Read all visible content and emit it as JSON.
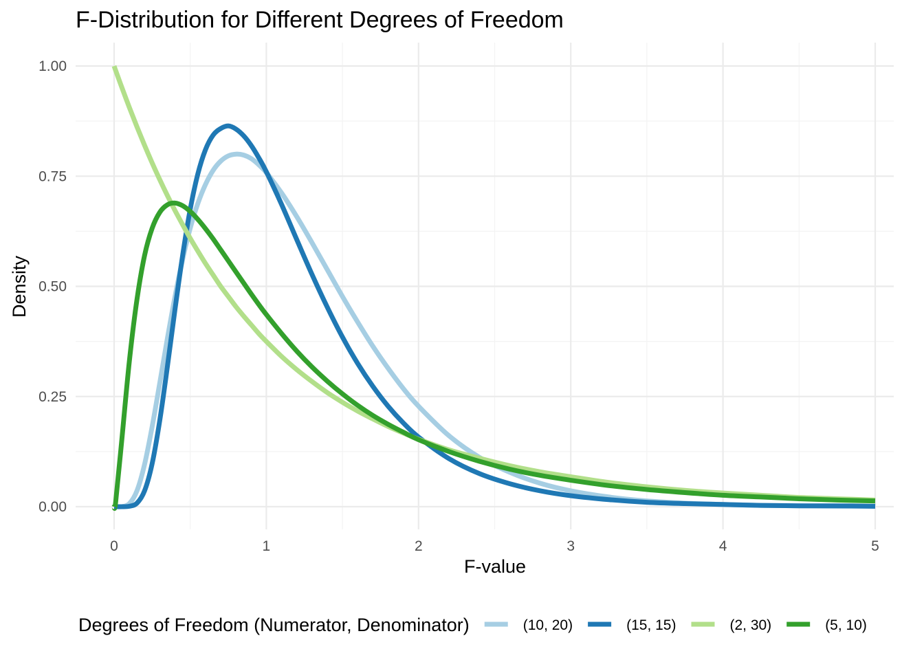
{
  "chart_data": {
    "type": "line",
    "title": "F-Distribution for Different Degrees of Freedom",
    "xlabel": "F-value",
    "ylabel": "Density",
    "xlim": [
      0,
      5
    ],
    "ylim": [
      0,
      1
    ],
    "x_ticks": [
      "0",
      "1",
      "2",
      "3",
      "4",
      "5"
    ],
    "y_ticks": [
      "0.00",
      "0.25",
      "0.50",
      "0.75",
      "1.00"
    ],
    "grid": true,
    "legend_title": "Degrees of Freedom (Numerator, Denominator)",
    "legend_position": "bottom",
    "x": [
      0.01,
      0.05,
      0.1,
      0.15,
      0.2,
      0.25,
      0.3,
      0.35,
      0.4,
      0.45,
      0.5,
      0.55,
      0.6,
      0.65,
      0.7,
      0.75,
      0.8,
      0.85,
      0.9,
      0.95,
      1.0,
      1.1,
      1.2,
      1.3,
      1.4,
      1.5,
      1.6,
      1.7,
      1.8,
      1.9,
      2.0,
      2.2,
      2.4,
      2.6,
      2.8,
      3.0,
      3.25,
      3.5,
      3.75,
      4.0,
      4.25,
      4.5,
      4.75,
      5.0
    ],
    "series": [
      {
        "name": "(10, 20)",
        "color": "#a6cee3",
        "values": [
          0.0,
          0.0,
          0.007,
          0.036,
          0.096,
          0.182,
          0.281,
          0.382,
          0.477,
          0.561,
          0.632,
          0.688,
          0.731,
          0.763,
          0.784,
          0.796,
          0.8,
          0.798,
          0.79,
          0.776,
          0.758,
          0.712,
          0.658,
          0.599,
          0.538,
          0.477,
          0.419,
          0.364,
          0.314,
          0.268,
          0.228,
          0.161,
          0.112,
          0.078,
          0.053,
          0.036,
          0.022,
          0.013,
          0.008,
          0.005,
          0.003,
          0.002,
          0.001,
          0.001
        ]
      },
      {
        "name": "(15, 15)",
        "color": "#1f78b4",
        "values": [
          0.0,
          0.0,
          0.001,
          0.008,
          0.036,
          0.098,
          0.196,
          0.318,
          0.448,
          0.57,
          0.675,
          0.755,
          0.81,
          0.843,
          0.858,
          0.864,
          0.857,
          0.842,
          0.82,
          0.792,
          0.76,
          0.686,
          0.606,
          0.527,
          0.453,
          0.385,
          0.325,
          0.273,
          0.228,
          0.19,
          0.158,
          0.109,
          0.075,
          0.052,
          0.036,
          0.025,
          0.016,
          0.01,
          0.007,
          0.005,
          0.003,
          0.002,
          0.002,
          0.001
        ]
      },
      {
        "name": "(2, 30)",
        "color": "#b2df8a",
        "values": [
          0.99,
          0.952,
          0.906,
          0.862,
          0.82,
          0.78,
          0.742,
          0.706,
          0.672,
          0.64,
          0.609,
          0.58,
          0.552,
          0.526,
          0.5,
          0.477,
          0.454,
          0.433,
          0.413,
          0.393,
          0.375,
          0.341,
          0.311,
          0.284,
          0.259,
          0.237,
          0.217,
          0.199,
          0.182,
          0.167,
          0.153,
          0.129,
          0.11,
          0.093,
          0.079,
          0.068,
          0.055,
          0.045,
          0.037,
          0.031,
          0.026,
          0.021,
          0.018,
          0.015
        ]
      },
      {
        "name": "(5, 10)",
        "color": "#33a02c",
        "values": [
          0.01,
          0.15,
          0.33,
          0.47,
          0.57,
          0.632,
          0.668,
          0.685,
          0.689,
          0.683,
          0.67,
          0.652,
          0.631,
          0.608,
          0.583,
          0.558,
          0.533,
          0.508,
          0.483,
          0.459,
          0.436,
          0.393,
          0.353,
          0.317,
          0.285,
          0.256,
          0.23,
          0.207,
          0.187,
          0.169,
          0.152,
          0.125,
          0.103,
          0.085,
          0.071,
          0.06,
          0.048,
          0.039,
          0.032,
          0.026,
          0.022,
          0.018,
          0.015,
          0.013
        ]
      }
    ]
  }
}
